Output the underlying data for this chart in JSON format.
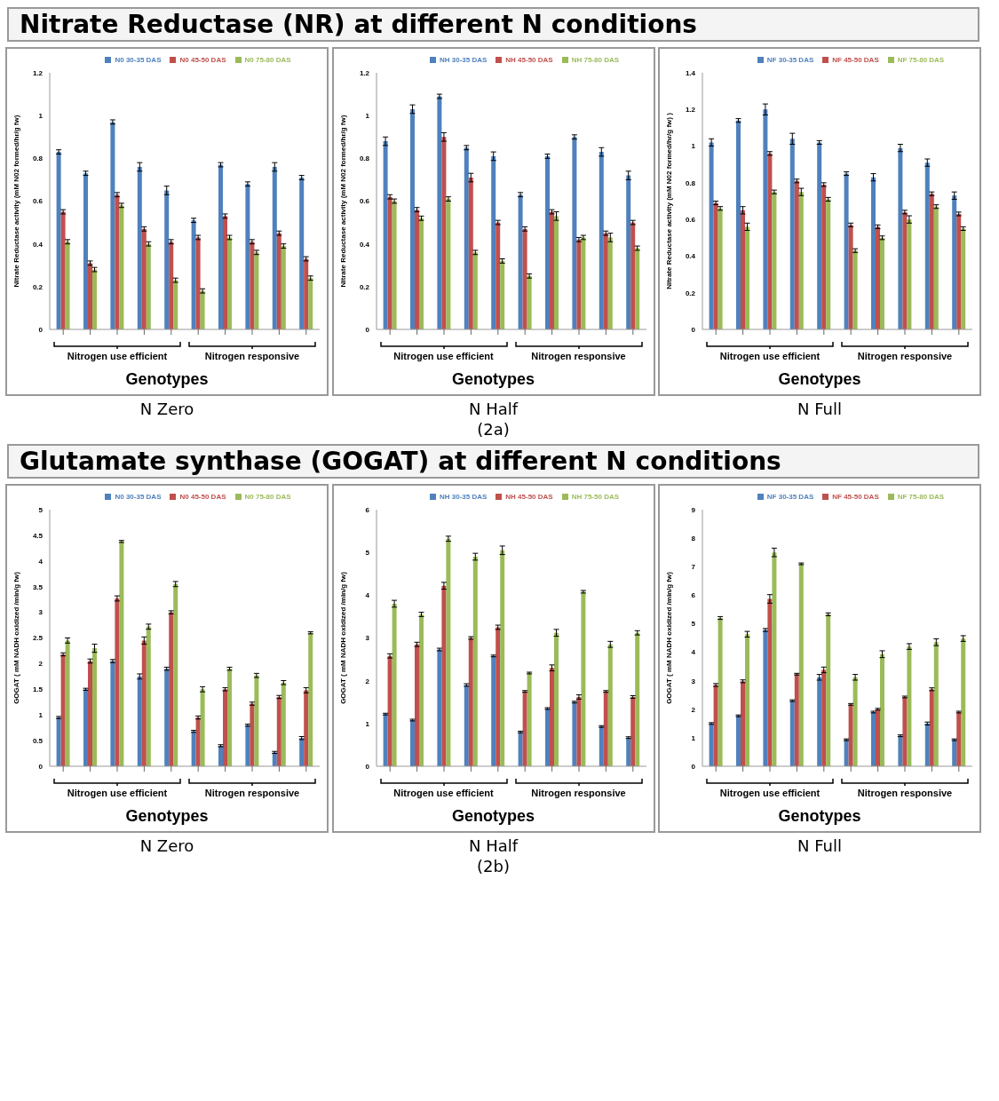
{
  "chart_data": [
    {
      "type": "bar",
      "title": "Nitrate Reductase (NR) at different N conditions",
      "subtitle": "N Zero",
      "xlabel": "Genotypes",
      "ylabel": "Nitrate Reductase activity (mM N02 formed/hr/g fw)",
      "annotations": [
        "Nitrogen use efficient",
        "Nitrogen responsive"
      ],
      "categories": [
        null,
        null,
        null,
        null,
        null,
        null,
        null,
        null,
        null,
        null
      ],
      "ylim": [
        0,
        1.2
      ],
      "yticks": [
        0,
        0.2,
        0.4,
        0.6,
        0.8,
        1,
        1.2
      ],
      "legend": "top",
      "grid": false,
      "series": [
        {
          "name": "N0 30-35 DAS",
          "color": "#4f81bd",
          "values": [
            0.83,
            0.73,
            0.97,
            0.76,
            0.65,
            0.51,
            0.77,
            0.68,
            0.76,
            0.71
          ],
          "errors": [
            0.01,
            0.01,
            0.01,
            0.02,
            0.02,
            0.01,
            0.01,
            0.01,
            0.02,
            0.01
          ]
        },
        {
          "name": "N0 45-50 DAS",
          "color": "#c0504d",
          "values": [
            0.55,
            0.31,
            0.63,
            0.47,
            0.41,
            0.43,
            0.53,
            0.41,
            0.45,
            0.33
          ],
          "errors": [
            0.01,
            0.01,
            0.01,
            0.01,
            0.01,
            0.01,
            0.01,
            0.01,
            0.01,
            0.01
          ]
        },
        {
          "name": "N0 75-80 DAS",
          "color": "#9bbb59",
          "values": [
            0.41,
            0.28,
            0.58,
            0.4,
            0.23,
            0.18,
            0.43,
            0.36,
            0.39,
            0.24
          ],
          "errors": [
            0.01,
            0.01,
            0.01,
            0.01,
            0.01,
            0.01,
            0.01,
            0.01,
            0.01,
            0.01
          ]
        }
      ]
    },
    {
      "type": "bar",
      "subtitle": "N Half",
      "xlabel": "Genotypes",
      "ylabel": "Nitrate Reductase activity (mM N02 formed/hr/g fw)",
      "annotations": [
        "Nitrogen use efficient",
        "Nitrogen responsive",
        "(2a)"
      ],
      "categories": [
        null,
        null,
        null,
        null,
        null,
        null,
        null,
        null,
        null,
        null
      ],
      "ylim": [
        0,
        1.2
      ],
      "yticks": [
        0,
        0.2,
        0.4,
        0.6,
        0.8,
        1,
        1.2
      ],
      "legend": "top",
      "grid": false,
      "series": [
        {
          "name": "NH 30-35 DAS",
          "color": "#4f81bd",
          "values": [
            0.88,
            1.03,
            1.09,
            0.85,
            0.81,
            0.63,
            0.81,
            0.9,
            0.83,
            0.72
          ],
          "errors": [
            0.02,
            0.02,
            0.01,
            0.01,
            0.02,
            0.01,
            0.01,
            0.01,
            0.02,
            0.02
          ]
        },
        {
          "name": "NH 45-50 DAS",
          "color": "#c0504d",
          "values": [
            0.62,
            0.56,
            0.9,
            0.71,
            0.5,
            0.47,
            0.55,
            0.42,
            0.45,
            0.5
          ],
          "errors": [
            0.01,
            0.01,
            0.02,
            0.02,
            0.01,
            0.01,
            0.01,
            0.01,
            0.01,
            0.01
          ]
        },
        {
          "name": "NH 75-80 DAS",
          "color": "#9bbb59",
          "values": [
            0.6,
            0.52,
            0.61,
            0.36,
            0.32,
            0.25,
            0.53,
            0.43,
            0.43,
            0.38
          ],
          "errors": [
            0.01,
            0.01,
            0.01,
            0.01,
            0.01,
            0.01,
            0.02,
            0.01,
            0.02,
            0.01
          ]
        }
      ]
    },
    {
      "type": "bar",
      "subtitle": "N Full",
      "xlabel": "Genotypes",
      "ylabel": "Nitrate Reductase activity (mM N02 formed/hr/g fw) )",
      "annotations": [
        "Nitrogen use efficient",
        "Nitrogen responsive"
      ],
      "categories": [
        null,
        null,
        null,
        null,
        null,
        null,
        null,
        null,
        null,
        null
      ],
      "ylim": [
        0,
        1.4
      ],
      "yticks": [
        0,
        0.2,
        0.4,
        0.6,
        0.8,
        1,
        1.2,
        1.4
      ],
      "legend": "top",
      "grid": false,
      "series": [
        {
          "name": "NF 30-35 DAS",
          "color": "#4f81bd",
          "values": [
            1.02,
            1.14,
            1.2,
            1.04,
            1.02,
            0.85,
            0.83,
            0.99,
            0.91,
            0.73
          ],
          "errors": [
            0.02,
            0.01,
            0.03,
            0.03,
            0.01,
            0.01,
            0.02,
            0.02,
            0.02,
            0.02
          ]
        },
        {
          "name": "NF 45-50 DAS",
          "color": "#c0504d",
          "values": [
            0.69,
            0.65,
            0.96,
            0.81,
            0.79,
            0.57,
            0.56,
            0.64,
            0.74,
            0.63
          ],
          "errors": [
            0.01,
            0.02,
            0.01,
            0.01,
            0.01,
            0.01,
            0.01,
            0.01,
            0.01,
            0.01
          ]
        },
        {
          "name": "NF 75-80 DAS",
          "color": "#9bbb59",
          "values": [
            0.66,
            0.56,
            0.75,
            0.75,
            0.71,
            0.43,
            0.5,
            0.6,
            0.67,
            0.55
          ],
          "errors": [
            0.01,
            0.02,
            0.01,
            0.02,
            0.01,
            0.01,
            0.01,
            0.02,
            0.01,
            0.01
          ]
        }
      ]
    },
    {
      "type": "bar",
      "title": "Glutamate synthase (GOGAT) at different N conditions",
      "subtitle": "N Zero",
      "xlabel": "Genotypes",
      "ylabel": "GOGAT ( mM NADH oxidized /min/g fw)",
      "annotations": [
        "Nitrogen use efficient",
        "Nitrogen responsive"
      ],
      "categories": [
        null,
        null,
        null,
        null,
        null,
        null,
        null,
        null,
        null,
        null
      ],
      "ylim": [
        0,
        5
      ],
      "yticks": [
        0,
        0.5,
        1,
        1.5,
        2,
        2.5,
        3,
        3.5,
        4,
        4.5,
        5
      ],
      "legend": "top",
      "grid": false,
      "series": [
        {
          "name": "N0 30-35 DAS",
          "color": "#4f81bd",
          "values": [
            0.95,
            1.5,
            2.05,
            1.75,
            1.9,
            0.68,
            0.4,
            0.8,
            0.27,
            0.55
          ],
          "errors": [
            0.02,
            0.02,
            0.03,
            0.05,
            0.03,
            0.02,
            0.02,
            0.02,
            0.02,
            0.03
          ]
        },
        {
          "name": "N0 45-50 DAS",
          "color": "#c0504d",
          "values": [
            2.18,
            2.05,
            3.27,
            2.45,
            3.0,
            0.95,
            1.5,
            1.22,
            1.35,
            1.48
          ],
          "errors": [
            0.03,
            0.04,
            0.05,
            0.07,
            0.03,
            0.03,
            0.03,
            0.03,
            0.03,
            0.05
          ]
        },
        {
          "name": "N0 75-80 DAS",
          "color": "#9bbb59",
          "values": [
            2.45,
            2.3,
            4.38,
            2.72,
            3.55,
            1.5,
            1.9,
            1.77,
            1.63,
            2.6
          ],
          "errors": [
            0.05,
            0.08,
            0.02,
            0.05,
            0.05,
            0.05,
            0.03,
            0.04,
            0.04,
            0.02
          ]
        }
      ]
    },
    {
      "type": "bar",
      "subtitle": "N Half",
      "xlabel": "Genotypes",
      "ylabel": "GOGAT ( mM NADH oxidized /min/g fw)",
      "annotations": [
        "Nitrogen use efficient",
        "Nitrogen responsive",
        "(2b)"
      ],
      "categories": [
        null,
        null,
        null,
        null,
        null,
        null,
        null,
        null,
        null,
        null
      ],
      "ylim": [
        0,
        6
      ],
      "yticks": [
        0,
        1,
        2,
        3,
        4,
        5,
        6
      ],
      "legend": "top",
      "grid": false,
      "series": [
        {
          "name": "NH 30-35 DAS",
          "color": "#4f81bd",
          "values": [
            1.22,
            1.08,
            2.73,
            1.9,
            2.58,
            0.8,
            1.35,
            1.5,
            0.93,
            0.67
          ],
          "errors": [
            0.02,
            0.02,
            0.03,
            0.03,
            0.02,
            0.02,
            0.02,
            0.02,
            0.02,
            0.02
          ]
        },
        {
          "name": "NH 45-50 DAS",
          "color": "#c0504d",
          "values": [
            2.58,
            2.85,
            4.22,
            3.0,
            3.25,
            1.75,
            2.3,
            1.62,
            1.75,
            1.62
          ],
          "errors": [
            0.05,
            0.05,
            0.08,
            0.03,
            0.05,
            0.02,
            0.07,
            0.05,
            0.02,
            0.03
          ]
        },
        {
          "name": "NH 75-50 DAS",
          "color": "#9bbb59",
          "values": [
            3.8,
            3.55,
            5.32,
            4.9,
            5.05,
            2.18,
            3.12,
            4.08,
            2.85,
            3.12
          ],
          "errors": [
            0.08,
            0.05,
            0.06,
            0.08,
            0.1,
            0.02,
            0.08,
            0.03,
            0.07,
            0.05
          ]
        }
      ]
    },
    {
      "type": "bar",
      "subtitle": "N Full",
      "xlabel": "Genotypes",
      "ylabel": "GOGAT ( mM NADH oxidized /min/g fw)",
      "annotations": [
        "Nitrogen use efficient",
        "Nitrogen responsive"
      ],
      "categories": [
        null,
        null,
        null,
        null,
        null,
        null,
        null,
        null,
        null,
        null
      ],
      "ylim": [
        0,
        9
      ],
      "yticks": [
        0,
        1,
        2,
        3,
        4,
        5,
        6,
        7,
        8,
        9
      ],
      "legend": "top",
      "grid": false,
      "series": [
        {
          "name": "NF 30-35 DAS",
          "color": "#4f81bd",
          "values": [
            1.5,
            1.77,
            4.78,
            2.3,
            3.12,
            0.93,
            1.9,
            1.07,
            1.5,
            0.93
          ],
          "errors": [
            0.03,
            0.03,
            0.05,
            0.03,
            0.1,
            0.03,
            0.03,
            0.03,
            0.05,
            0.03
          ]
        },
        {
          "name": "NF 45-50 DAS",
          "color": "#c0504d",
          "values": [
            2.85,
            2.98,
            5.87,
            3.23,
            3.38,
            2.17,
            2.0,
            2.43,
            2.7,
            1.9
          ],
          "errors": [
            0.05,
            0.05,
            0.15,
            0.03,
            0.1,
            0.03,
            0.03,
            0.03,
            0.05,
            0.03
          ]
        },
        {
          "name": "NF 75-80 DAS",
          "color": "#9bbb59",
          "values": [
            5.2,
            4.63,
            7.5,
            7.1,
            5.33,
            3.12,
            3.93,
            4.2,
            4.35,
            4.48
          ],
          "errors": [
            0.05,
            0.1,
            0.15,
            0.03,
            0.05,
            0.1,
            0.12,
            0.1,
            0.12,
            0.1
          ]
        }
      ]
    }
  ]
}
